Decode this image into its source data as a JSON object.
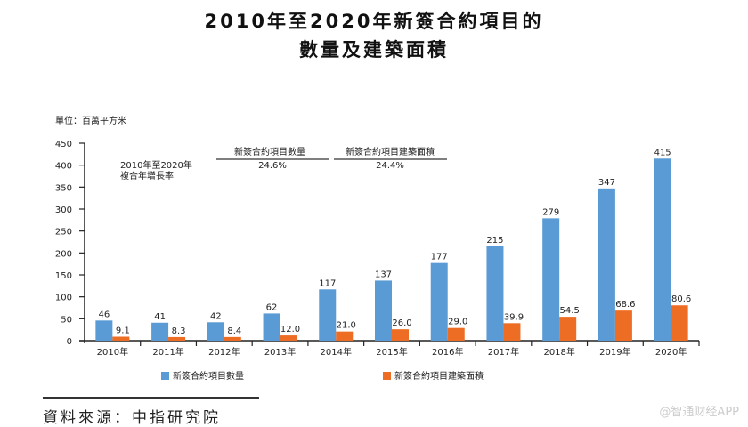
{
  "chart_data": {
    "type": "bar",
    "title": [
      "2010年至2020年新簽合約項目的",
      "數量及建築面積"
    ],
    "unit_label": "單位：百萬平方米",
    "categories": [
      "2010年",
      "2011年",
      "2012年",
      "2013年",
      "2014年",
      "2015年",
      "2016年",
      "2017年",
      "2018年",
      "2019年",
      "2020年"
    ],
    "series": [
      {
        "name": "新簽合約項目數量",
        "color": "#5b9bd5",
        "values": [
          46,
          41,
          42,
          62,
          117,
          137,
          177,
          215,
          279,
          347,
          415
        ],
        "labels": [
          "46",
          "41",
          "42",
          "62",
          "117",
          "137",
          "177",
          "215",
          "279",
          "347",
          "415"
        ]
      },
      {
        "name": "新簽合約項目建築面積",
        "color": "#ed6d25",
        "values": [
          9.1,
          8.3,
          8.4,
          12.0,
          21.0,
          26.0,
          29.0,
          39.9,
          54.5,
          68.6,
          80.6
        ],
        "labels": [
          "9.1",
          "8.3",
          "8.4",
          "12.0",
          "21.0",
          "26.0",
          "29.0",
          "39.9",
          "54.5",
          "68.6",
          "80.6"
        ]
      }
    ],
    "ylim": [
      0,
      450
    ],
    "yticks": [
      0,
      50,
      100,
      150,
      200,
      250,
      300,
      350,
      400,
      450
    ],
    "legend": "bottom",
    "annotation": {
      "label_line1": "2010年至2020年",
      "label_line2": "複合年增長率",
      "col1_header": "新簽合約項目數量",
      "col1_value": "24.6%",
      "col2_header": "新簽合約項目建築面積",
      "col2_value": "24.4%"
    }
  },
  "source": "資料來源：中指研究院",
  "watermark": "@智通财经APP"
}
